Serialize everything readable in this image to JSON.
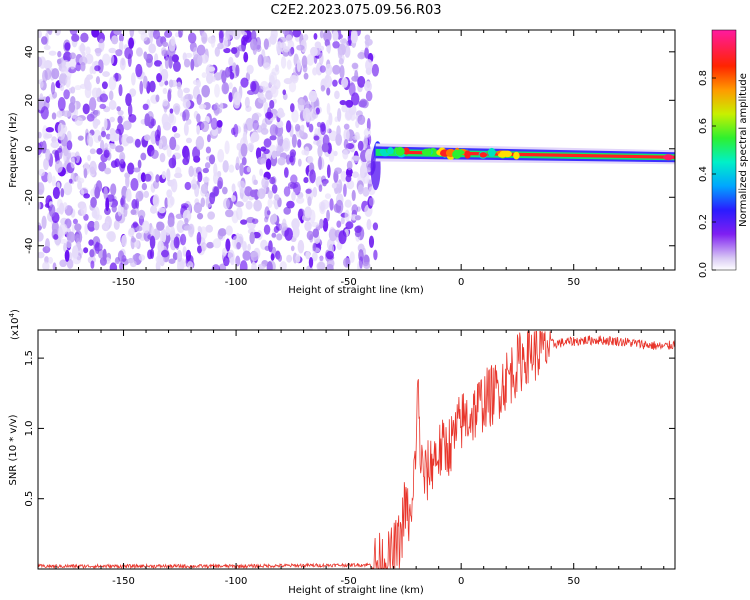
{
  "title": "C2E2.2023.075.09.56.R03",
  "chart_data": [
    {
      "type": "heatmap",
      "xlabel": "Height of straight line (km)",
      "ylabel": "Frequency (Hz)",
      "xlim": [
        -188,
        95
      ],
      "ylim": [
        -50,
        49
      ],
      "xticks": [
        -150,
        -100,
        -50,
        0,
        50
      ],
      "yticks": [
        -40,
        -20,
        0,
        20,
        40
      ],
      "colorbar": {
        "label": "Normalized spectral amplitude",
        "range": [
          0,
          1
        ],
        "ticks": [
          "0.0",
          "0.2",
          "0.4",
          "0.6",
          "0.8"
        ],
        "colormap": "rainbow (white-purple-blue-cyan-green-yellow-red-magenta)"
      },
      "regions": [
        {
          "name": "noise",
          "x_range": [
            -188,
            -38
          ],
          "freq_range": [
            -50,
            49
          ],
          "amplitude": "low (0.0-0.2)"
        },
        {
          "name": "signal",
          "x_range": [
            -38,
            95
          ],
          "freq_center_start": -1.5,
          "freq_center_end": -3.5,
          "amplitude": "high (0.6-1.0)"
        }
      ]
    },
    {
      "type": "line",
      "xlabel": "Height of straight line (km)",
      "ylabel": "SNR (10 * v/v)",
      "y_multiplier": "(x10^4)",
      "xlim": [
        -188,
        95
      ],
      "ylim": [
        0,
        17000
      ],
      "xticks": [
        -150,
        -100,
        -50,
        0,
        50
      ],
      "yticks": [
        0.5,
        1.0,
        1.5
      ],
      "series": [
        {
          "color": "#e8352b",
          "x": [
            -188,
            -100,
            -40,
            -32,
            -27,
            -25,
            -22,
            -20,
            -19,
            -18,
            -16,
            -12,
            -8,
            -4,
            0,
            5,
            10,
            15,
            20,
            25,
            30,
            35,
            40,
            50,
            60,
            70,
            80,
            90,
            95
          ],
          "y": [
            200,
            200,
            300,
            500,
            2000,
            4500,
            3000,
            9500,
            13000,
            7500,
            6500,
            8000,
            8500,
            9000,
            10500,
            11000,
            12000,
            12500,
            13500,
            14500,
            15500,
            15500,
            16000,
            16200,
            16300,
            16200,
            16000,
            15800,
            16000
          ]
        }
      ]
    }
  ]
}
